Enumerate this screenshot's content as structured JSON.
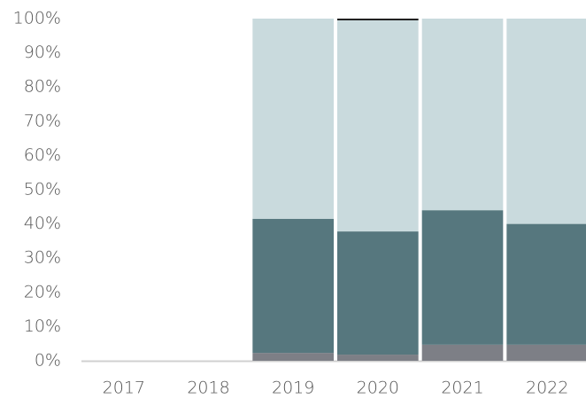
{
  "chart_data": {
    "type": "stacked_bar",
    "categories": [
      "2017",
      "2018",
      "2019",
      "2020",
      "2021",
      "2022"
    ],
    "series": [
      {
        "color": "#7d7f86",
        "values": [
          null,
          null,
          2.3,
          1.8,
          4.7,
          4.7
        ]
      },
      {
        "color": "#56777e",
        "values": [
          null,
          null,
          39.2,
          36,
          39.3,
          35.3
        ]
      },
      {
        "color": "#c9dadd",
        "values": [
          null,
          null,
          58.5,
          61.7,
          56,
          60
        ]
      },
      {
        "color": "#1a1a1a",
        "values": [
          null,
          null,
          null,
          0.5,
          null,
          null
        ]
      }
    ],
    "ylim": [
      0,
      100
    ],
    "yticks": [
      {
        "value": 0,
        "label": "0%"
      },
      {
        "value": 10,
        "label": "10%"
      },
      {
        "value": 20,
        "label": "20%"
      },
      {
        "value": 30,
        "label": "30%"
      },
      {
        "value": 40,
        "label": "40%"
      },
      {
        "value": 50,
        "label": "50%"
      },
      {
        "value": 60,
        "label": "60%"
      },
      {
        "value": 70,
        "label": "70%"
      },
      {
        "value": 80,
        "label": "80%"
      },
      {
        "value": 90,
        "label": "90%"
      },
      {
        "value": 100,
        "label": "100%"
      }
    ],
    "grid": false
  }
}
